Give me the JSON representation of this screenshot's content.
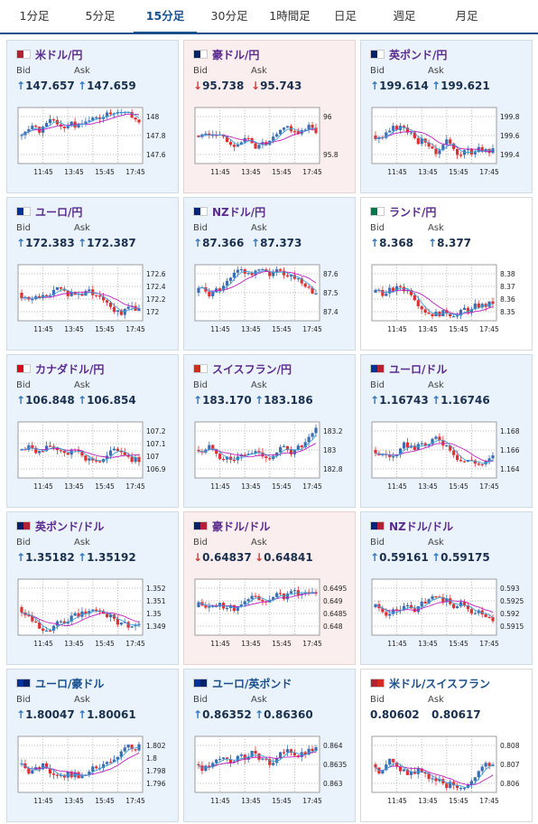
{
  "tabs": [
    {
      "label": "1分足",
      "active": false
    },
    {
      "label": "5分足",
      "active": false
    },
    {
      "label": "15分足",
      "active": true
    },
    {
      "label": "30分足",
      "active": false
    },
    {
      "label": "1時間足",
      "active": false
    },
    {
      "label": "日足",
      "active": false
    },
    {
      "label": "週足",
      "active": false
    },
    {
      "label": "月足",
      "active": false
    }
  ],
  "labels": {
    "bid": "Bid",
    "ask": "Ask"
  },
  "x_ticks": [
    "11:45",
    "13:45",
    "15:45",
    "17:45"
  ],
  "colors": {
    "up_candle": "#3a6fb5",
    "down_candle": "#e03030",
    "ma": "#c020c0",
    "up_arrow": "#2c77c6",
    "down_arrow": "#d23a3a"
  },
  "cards": [
    {
      "pair": "米ドル/円",
      "flag": "us-jp",
      "bg": "blue",
      "dir": "up",
      "bid": "147.657",
      "ask": "147.659",
      "yticks": [
        "148",
        "147.8",
        "147.6"
      ],
      "chart_seed": 1
    },
    {
      "pair": "豪ドル/円",
      "flag": "au-jp",
      "bg": "pink",
      "dir": "down",
      "bid": "95.738",
      "ask": "95.743",
      "yticks": [
        "96",
        "95.8"
      ],
      "chart_seed": 2
    },
    {
      "pair": "英ポンド/円",
      "flag": "gb-jp",
      "bg": "blue",
      "dir": "up",
      "bid": "199.614",
      "ask": "199.621",
      "yticks": [
        "199.8",
        "199.6",
        "199.4"
      ],
      "chart_seed": 3
    },
    {
      "pair": "ユーロ/円",
      "flag": "eu-jp",
      "bg": "blue",
      "dir": "up",
      "bid": "172.383",
      "ask": "172.387",
      "yticks": [
        "172.6",
        "172.4",
        "172.2",
        "172"
      ],
      "chart_seed": 4
    },
    {
      "pair": "NZドル/円",
      "flag": "nz-jp",
      "bg": "blue",
      "dir": "up",
      "bid": "87.366",
      "ask": "87.373",
      "yticks": [
        "87.6",
        "87.5",
        "87.4"
      ],
      "chart_seed": 5
    },
    {
      "pair": "ランド/円",
      "flag": "za-jp",
      "bg": "white",
      "dir": "up",
      "bid": "8.368",
      "ask": "8.377",
      "yticks": [
        "8.38",
        "8.37",
        "8.36",
        "8.35"
      ],
      "chart_seed": 6
    },
    {
      "pair": "カナダドル/円",
      "flag": "ca-jp",
      "bg": "blue",
      "dir": "up",
      "bid": "106.848",
      "ask": "106.854",
      "yticks": [
        "107.2",
        "107.1",
        "107",
        "106.9"
      ],
      "chart_seed": 7
    },
    {
      "pair": "スイスフラン/円",
      "flag": "ch-jp",
      "bg": "blue",
      "dir": "up",
      "bid": "183.170",
      "ask": "183.186",
      "yticks": [
        "183.2",
        "183",
        "182.8"
      ],
      "chart_seed": 8
    },
    {
      "pair": "ユーロ/ドル",
      "flag": "eu-us",
      "bg": "blue",
      "dir": "up",
      "bid": "1.16743",
      "ask": "1.16746",
      "yticks": [
        "1.168",
        "1.166",
        "1.164"
      ],
      "chart_seed": 9
    },
    {
      "pair": "英ポンド/ドル",
      "flag": "gb-us",
      "bg": "blue",
      "dir": "up",
      "bid": "1.35182",
      "ask": "1.35192",
      "yticks": [
        "1.352",
        "1.351",
        "1.35",
        "1.349"
      ],
      "chart_seed": 10
    },
    {
      "pair": "豪ドル/ドル",
      "flag": "au-us",
      "bg": "pink",
      "dir": "down",
      "bid": "0.64837",
      "ask": "0.64841",
      "yticks": [
        "0.6495",
        "0.649",
        "0.6485",
        "0.648"
      ],
      "chart_seed": 11
    },
    {
      "pair": "NZドル/ドル",
      "flag": "nz-us",
      "bg": "blue",
      "dir": "up",
      "bid": "0.59161",
      "ask": "0.59175",
      "yticks": [
        "0.593",
        "0.5925",
        "0.592",
        "0.5915"
      ],
      "chart_seed": 12
    },
    {
      "pair": "ユーロ/豪ドル",
      "flag": "eu-au",
      "bg": "blue",
      "dir": "up",
      "bid": "1.80047",
      "ask": "1.80061",
      "yticks": [
        "1.802",
        "1.8",
        "1.798",
        "1.796"
      ],
      "chart_seed": 13
    },
    {
      "pair": "ユーロ/英ポンド",
      "flag": "eu-gb",
      "bg": "blue",
      "dir": "up",
      "bid": "0.86352",
      "ask": "0.86360",
      "yticks": [
        "0.864",
        "0.8635",
        "0.863"
      ],
      "chart_seed": 14
    },
    {
      "pair": "米ドル/スイスフラン",
      "flag": "us-ch",
      "bg": "white",
      "dir": "none",
      "bid": "0.80602",
      "ask": "0.80617",
      "yticks": [
        "0.808",
        "0.807",
        "0.806"
      ],
      "chart_seed": 15
    }
  ]
}
